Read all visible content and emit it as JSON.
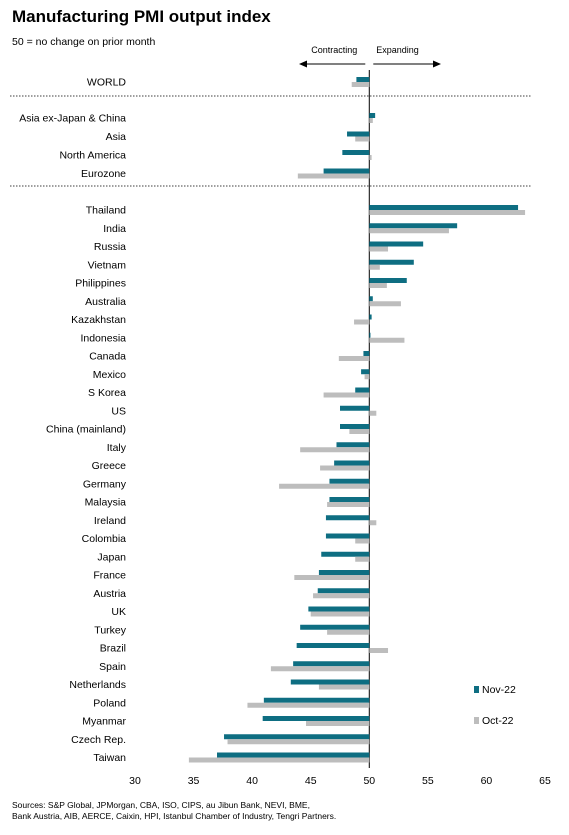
{
  "title": "Manufacturing PMI output index",
  "subtitle": "50 = no change on prior month",
  "sources": [
    "Sources: S&P Global, JPMorgan, CBA, ISO, CIPS, au Jibun Bank, NEVI, BME,",
    "Bank Austria, AIB, AERCE, Caixin, HPI, Istanbul Chamber of Industry, Tengri Partners."
  ],
  "chart_data": {
    "type": "bar",
    "orientation": "horizontal",
    "title": "Manufacturing PMI output index",
    "subtitle": "50 = no change on prior month",
    "direction_labels": {
      "left": "Contracting",
      "right": "Expanding"
    },
    "baseline": 50,
    "xlim": [
      30,
      65
    ],
    "xticks": [
      30,
      35,
      40,
      45,
      50,
      55,
      60,
      65
    ],
    "legend_position": "bottom-right",
    "categories": [
      "WORLD",
      "Asia ex-Japan & China",
      "Asia",
      "North America",
      "Eurozone",
      "Thailand",
      "India",
      "Russia",
      "Vietnam",
      "Philippines",
      "Australia",
      "Kazakhstan",
      "Indonesia",
      "Canada",
      "Mexico",
      "S Korea",
      "US",
      "China (mainland)",
      "Italy",
      "Greece",
      "Germany",
      "Malaysia",
      "Ireland",
      "Colombia",
      "Japan",
      "France",
      "Austria",
      "UK",
      "Turkey",
      "Brazil",
      "Spain",
      "Netherlands",
      "Poland",
      "Myanmar",
      "Czech Rep.",
      "Taiwan"
    ],
    "groups": [
      {
        "start": 0,
        "end": 0
      },
      {
        "start": 1,
        "end": 4
      },
      {
        "start": 5,
        "end": 35
      }
    ],
    "series": [
      {
        "name": "Nov-22",
        "color": "#0e6e82",
        "values": [
          48.9,
          50.5,
          48.1,
          47.7,
          46.1,
          62.7,
          57.5,
          54.6,
          53.8,
          53.2,
          50.3,
          50.2,
          50.1,
          49.5,
          49.3,
          48.8,
          47.5,
          47.5,
          47.2,
          47.0,
          46.6,
          46.6,
          46.3,
          46.3,
          45.9,
          45.7,
          45.6,
          44.8,
          44.1,
          43.8,
          43.5,
          43.3,
          41.0,
          40.9,
          37.6,
          37.0
        ]
      },
      {
        "name": "Oct-22",
        "color": "#bdbdbd",
        "values": [
          48.5,
          50.3,
          48.8,
          50.2,
          43.9,
          63.3,
          56.8,
          51.6,
          50.9,
          51.5,
          52.7,
          48.7,
          53.0,
          47.4,
          49.6,
          46.1,
          50.6,
          48.3,
          44.1,
          45.8,
          42.3,
          46.4,
          50.6,
          48.8,
          48.8,
          43.6,
          45.2,
          45.0,
          46.4,
          51.6,
          41.6,
          45.7,
          39.6,
          44.6,
          37.9,
          34.6
        ]
      }
    ]
  }
}
